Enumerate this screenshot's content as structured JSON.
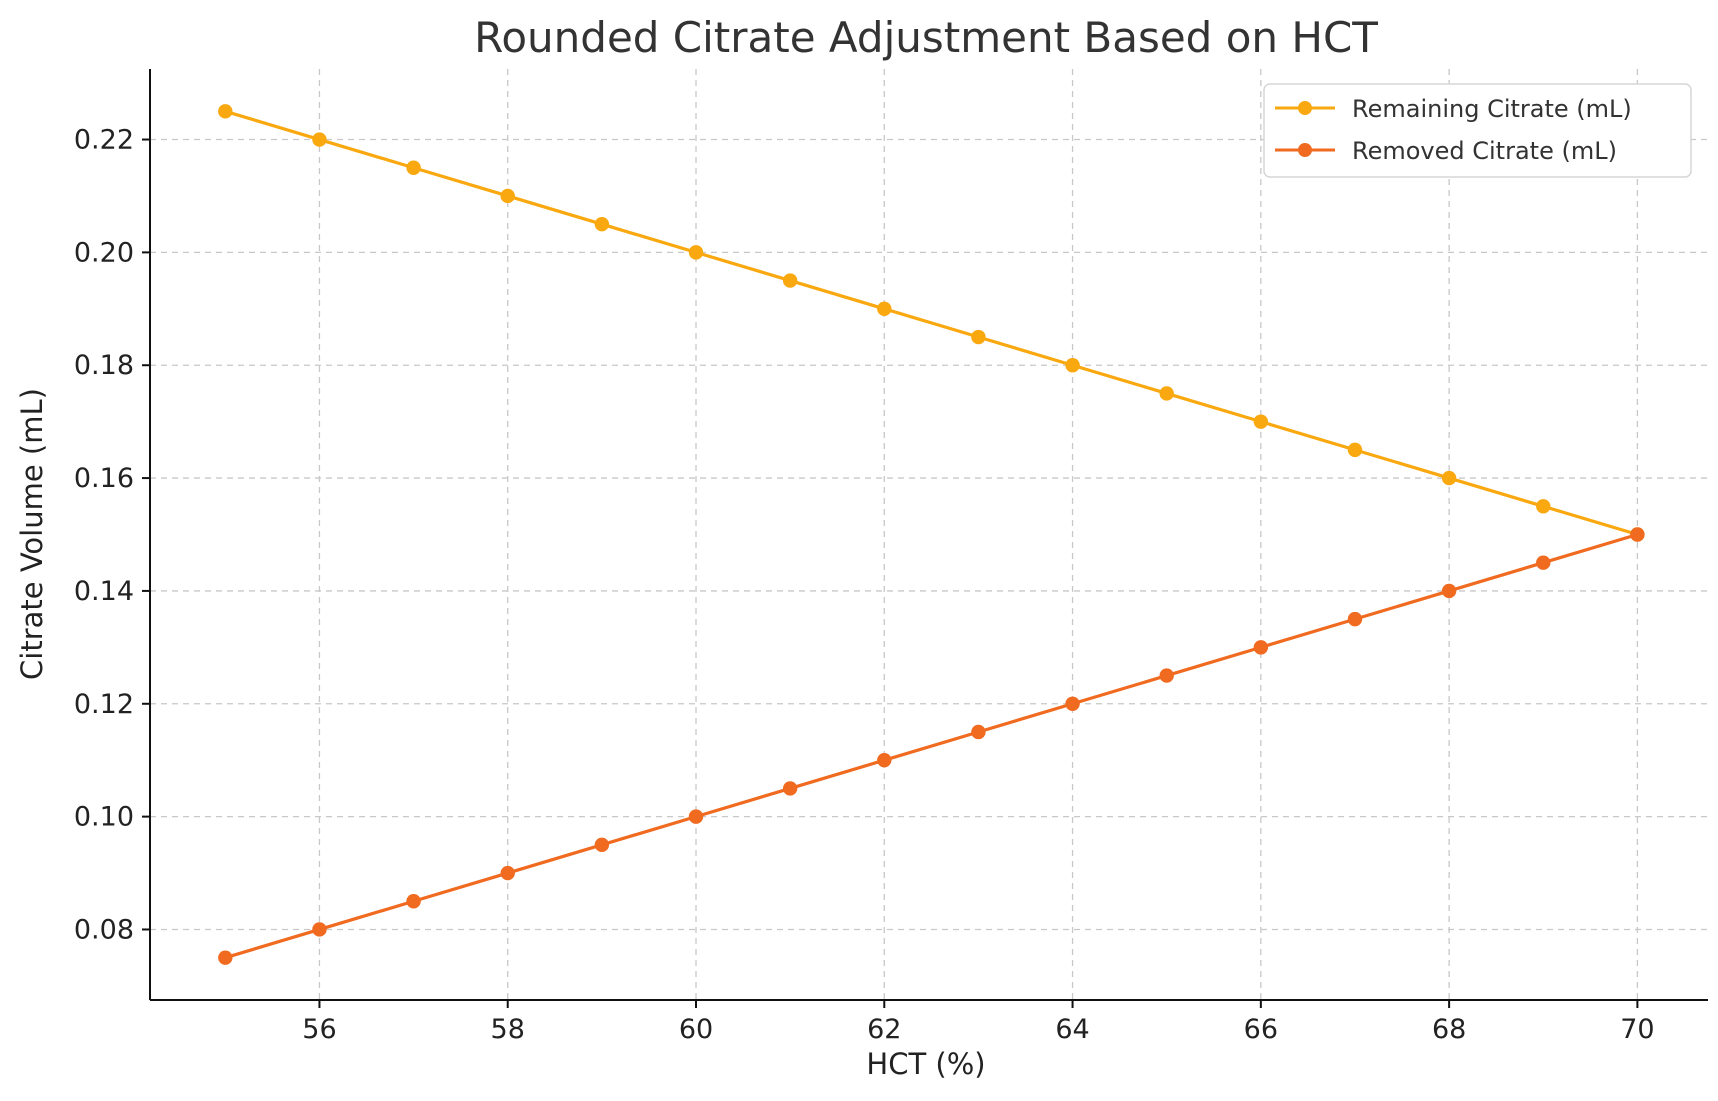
{
  "chart_data": {
    "type": "line",
    "title": "Rounded Citrate Adjustment Based on HCT",
    "xlabel": "HCT (%)",
    "ylabel": "Citrate Volume (mL)",
    "x": [
      55,
      56,
      57,
      58,
      59,
      60,
      61,
      62,
      63,
      64,
      65,
      66,
      67,
      68,
      69,
      70
    ],
    "xlim": [
      54.2,
      70.75
    ],
    "ylim": [
      0.0675,
      0.2325
    ],
    "xticks": [
      56,
      58,
      60,
      62,
      64,
      66,
      68,
      70
    ],
    "yticks": [
      0.08,
      0.1,
      0.12,
      0.14,
      0.16,
      0.18,
      0.2,
      0.22
    ],
    "ytick_labels": [
      "0.08",
      "0.10",
      "0.12",
      "0.14",
      "0.16",
      "0.18",
      "0.20",
      "0.22"
    ],
    "grid": true,
    "legend_position": "top-right",
    "series": [
      {
        "name": "Remaining Citrate (mL)",
        "color": "#f9a80f",
        "marker": "circle",
        "values": [
          0.225,
          0.22,
          0.215,
          0.21,
          0.205,
          0.2,
          0.195,
          0.19,
          0.185,
          0.18,
          0.175,
          0.17,
          0.165,
          0.16,
          0.155,
          0.15
        ]
      },
      {
        "name": "Removed Citrate (mL)",
        "color": "#f06a20",
        "marker": "circle",
        "values": [
          0.075,
          0.08,
          0.085,
          0.09,
          0.095,
          0.1,
          0.105,
          0.11,
          0.115,
          0.12,
          0.125,
          0.13,
          0.135,
          0.14,
          0.145,
          0.15
        ]
      }
    ]
  }
}
